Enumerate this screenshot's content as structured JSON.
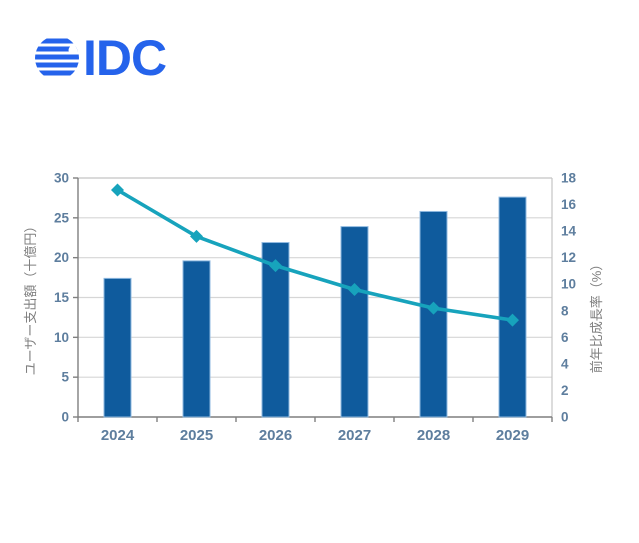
{
  "logo": {
    "text": "IDC",
    "color": "#2563EB"
  },
  "chart_data": {
    "type": "bar+line",
    "title": "",
    "categories": [
      "2024",
      "2025",
      "2026",
      "2027",
      "2028",
      "2029"
    ],
    "series": [
      {
        "name": "ユーザー支出額",
        "type": "bar",
        "axis": "left",
        "color": "#0F5B9D",
        "edge_color": "#8FB9E0",
        "values": [
          17.4,
          19.6,
          21.9,
          23.9,
          25.8,
          27.6
        ]
      },
      {
        "name": "前年比成長率",
        "type": "line",
        "axis": "right",
        "color": "#17A3BC",
        "marker": "diamond",
        "values": [
          17.1,
          13.6,
          11.4,
          9.6,
          8.2,
          7.3
        ]
      }
    ],
    "left_axis": {
      "label": "ユーザー支出額（十億円）",
      "min": 0,
      "max": 30,
      "step": 5,
      "ticks": [
        "0",
        "5",
        "10",
        "15",
        "20",
        "25",
        "30"
      ]
    },
    "right_axis": {
      "label": "前年比成長率（%）",
      "min": 0,
      "max": 18,
      "step": 2,
      "ticks": [
        "0",
        "2",
        "4",
        "6",
        "8",
        "10",
        "12",
        "14",
        "16",
        "18"
      ]
    },
    "grid": true,
    "legend": false,
    "styles": {
      "gridline_color": "#D6D6D6",
      "frame_color": "#C4C4C4",
      "axis_color": "#7F7F7F",
      "tick_label_color": "#5E7E9E",
      "axis_title_color": "#7F7F7F"
    }
  }
}
